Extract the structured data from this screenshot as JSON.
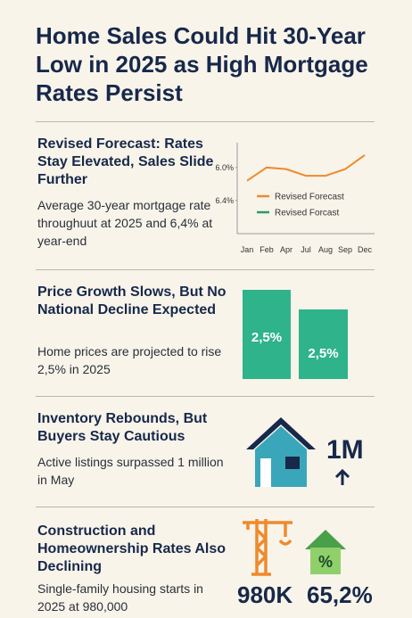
{
  "title": "Home Sales Could Hit 30-Year Low in 2025 as High Mortgage Rates Persist",
  "sections": [
    {
      "heading": "Revised Forecast: Rates Stay Elevated, Sales Slide Further",
      "text": "Average 30-year mortgage rate throughuut at 2025 and 6,4% at year-end",
      "chart_data": {
        "type": "line",
        "categories": [
          "Jan",
          "Feb",
          "Apr",
          "Jul",
          "Aug",
          "Sep",
          "Dec"
        ],
        "series": [
          {
            "name": "Revised Forecast",
            "color": "#ef8a2c",
            "values": [
              6.16,
              6.0,
              6.02,
              6.1,
              6.1,
              6.02,
              5.85
            ]
          },
          {
            "name": "Revised Forcast",
            "color": "#2a9a6a",
            "values": [
              null,
              null,
              null,
              null,
              null,
              null,
              null
            ]
          }
        ],
        "ylim": [
          6.8,
          5.7
        ],
        "yticks": [
          {
            "value": 6.0,
            "label": "6.0%"
          },
          {
            "value": 6.4,
            "label": "6.4%"
          }
        ]
      }
    },
    {
      "heading": "Price Growth Slows, But No National Decline Expected",
      "text": "Home prices are projected to rise 2,5% in 2025",
      "bar_labels": [
        "2,5%",
        "2,5%"
      ]
    },
    {
      "heading": "Inventory Rebounds, But Buyers Stay Cautious",
      "text": "Active listings surpassed 1 million in May",
      "stat": "1M"
    },
    {
      "heading": "Construction and Homeownership Rates Also Declining",
      "text": "Single-family housing starts in 2025 at 980,000",
      "stats": [
        "980K",
        "65,2%"
      ]
    }
  ]
}
